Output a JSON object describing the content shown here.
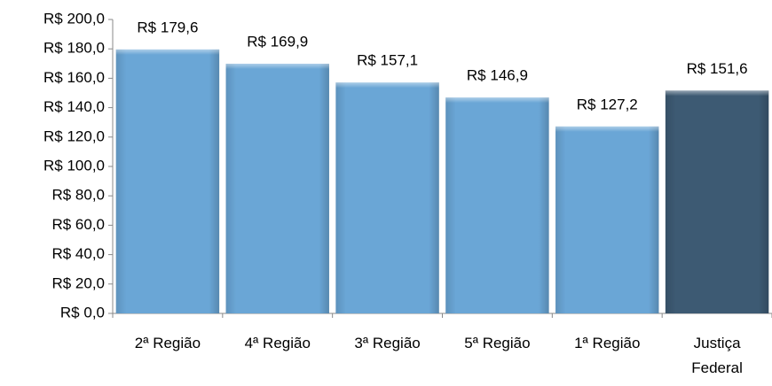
{
  "chart_data": {
    "type": "bar",
    "categories": [
      "2ª Região",
      "4ª Região",
      "3ª Região",
      "5ª Região",
      "1ª Região",
      "Justiça Federal"
    ],
    "values": [
      179.6,
      169.9,
      157.1,
      146.9,
      127.2,
      151.6
    ],
    "value_labels": [
      "R$ 179,6",
      "R$ 169,9",
      "R$ 157,1",
      "R$ 146,9",
      "R$ 127,2",
      "R$ 151,6"
    ],
    "colors": [
      "#6aa6d6",
      "#6aa6d6",
      "#6aa6d6",
      "#6aa6d6",
      "#6aa6d6",
      "#3d5a73"
    ],
    "ylim": [
      0,
      200
    ],
    "yticks": [
      {
        "value": 0,
        "label": "R$ 0,0"
      },
      {
        "value": 20,
        "label": "R$ 20,0"
      },
      {
        "value": 40,
        "label": "R$ 40,0"
      },
      {
        "value": 60,
        "label": "R$ 60,0"
      },
      {
        "value": 80,
        "label": "R$ 80,0"
      },
      {
        "value": 100,
        "label": "R$ 100,0"
      },
      {
        "value": 120,
        "label": "R$ 120,0"
      },
      {
        "value": 140,
        "label": "R$ 140,0"
      },
      {
        "value": 160,
        "label": "R$ 160,0"
      },
      {
        "value": 180,
        "label": "R$ 180,0"
      },
      {
        "value": 200,
        "label": "R$ 200,0"
      }
    ]
  }
}
